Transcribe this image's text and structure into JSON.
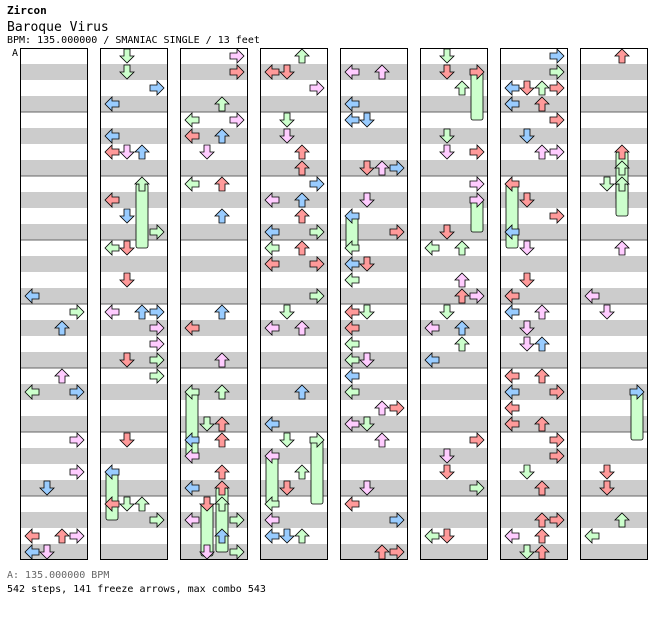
{
  "header": {
    "artist": "Zircon",
    "song_title": "Baroque Virus",
    "meta_line": "BPM: 135.000000 / SMANIAC SINGLE / 13 feet",
    "section_marker": "A"
  },
  "footer": {
    "bpm_line": "A: 135.000000 BPM",
    "stats_line": "542 steps, 141 freeze arrows, max combo 543"
  },
  "colors": {
    "stripe": "#cccccc",
    "note_red": "#ff9a9a",
    "note_blue": "#99ccff",
    "note_green": "#ccffcc",
    "note_pink": "#ffccff",
    "freeze_body": "#ccffcc",
    "border": "#000000"
  },
  "chart_meta": {
    "columns": 8,
    "lanes_per_column": 4,
    "beats_per_column": 16,
    "total_steps": 542,
    "freeze_arrows": 141,
    "max_combo": 543
  }
}
